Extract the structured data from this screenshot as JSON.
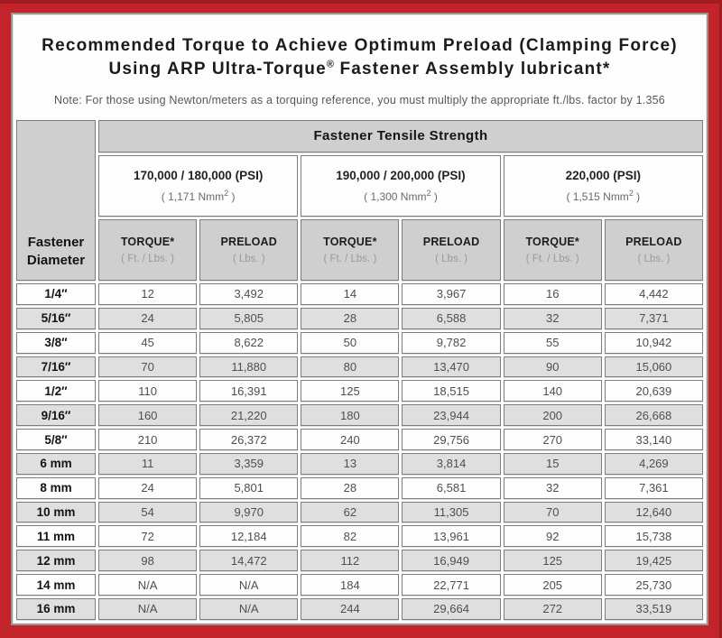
{
  "title": {
    "line1": "Recommended Torque to Achieve Optimum Preload (Clamping Force)",
    "line2_pre": "Using ARP Ultra-Torque",
    "line2_sup": "®",
    "line2_post": " Fastener Assembly lubricant*"
  },
  "note": "Note: For those using Newton/meters as a torquing reference, you must multiply the appropriate ft./lbs. factor by 1.356",
  "table": {
    "tensile_header": "Fastener Tensile Strength",
    "diameter_header": [
      "Fastener",
      "Diameter"
    ],
    "groups": [
      {
        "psi_label": "170,000 / 180,000 (PSI)",
        "nmm_pre": "( 1,171 Nmm",
        "nmm_sup": "2",
        "nmm_post": " )"
      },
      {
        "psi_label": "190,000 / 200,000 (PSI)",
        "nmm_pre": "( 1,300 Nmm",
        "nmm_sup": "2",
        "nmm_post": " )"
      },
      {
        "psi_label": "220,000 (PSI)",
        "nmm_pre": "( 1,515 Nmm",
        "nmm_sup": "2",
        "nmm_post": " )"
      }
    ],
    "col_headers": {
      "torque_label": "TORQUE*",
      "torque_unit": "( Ft. / Lbs. )",
      "preload_label": "PRELOAD",
      "preload_unit": "( Lbs. )"
    },
    "rows": [
      {
        "diameter": "1/4″",
        "values": [
          "12",
          "3,492",
          "14",
          "3,967",
          "16",
          "4,442"
        ]
      },
      {
        "diameter": "5/16″",
        "values": [
          "24",
          "5,805",
          "28",
          "6,588",
          "32",
          "7,371"
        ]
      },
      {
        "diameter": "3/8″",
        "values": [
          "45",
          "8,622",
          "50",
          "9,782",
          "55",
          "10,942"
        ]
      },
      {
        "diameter": "7/16″",
        "values": [
          "70",
          "11,880",
          "80",
          "13,470",
          "90",
          "15,060"
        ]
      },
      {
        "diameter": "1/2″",
        "values": [
          "110",
          "16,391",
          "125",
          "18,515",
          "140",
          "20,639"
        ]
      },
      {
        "diameter": "9/16″",
        "values": [
          "160",
          "21,220",
          "180",
          "23,944",
          "200",
          "26,668"
        ]
      },
      {
        "diameter": "5/8″",
        "values": [
          "210",
          "26,372",
          "240",
          "29,756",
          "270",
          "33,140"
        ]
      },
      {
        "diameter": "6 mm",
        "values": [
          "11",
          "3,359",
          "13",
          "3,814",
          "15",
          "4,269"
        ]
      },
      {
        "diameter": "8 mm",
        "values": [
          "24",
          "5,801",
          "28",
          "6,581",
          "32",
          "7,361"
        ]
      },
      {
        "diameter": "10 mm",
        "values": [
          "54",
          "9,970",
          "62",
          "11,305",
          "70",
          "12,640"
        ]
      },
      {
        "diameter": "11 mm",
        "values": [
          "72",
          "12,184",
          "82",
          "13,961",
          "92",
          "15,738"
        ]
      },
      {
        "diameter": "12 mm",
        "values": [
          "98",
          "14,472",
          "112",
          "16,949",
          "125",
          "19,425"
        ]
      },
      {
        "diameter": "14 mm",
        "values": [
          "N/A",
          "N/A",
          "184",
          "22,771",
          "205",
          "25,730"
        ]
      },
      {
        "diameter": "16 mm",
        "values": [
          "N/A",
          "N/A",
          "244",
          "29,664",
          "272",
          "33,519"
        ]
      }
    ]
  },
  "colors": {
    "frame_red": "#c3232b",
    "frame_red_dark": "#a01b22",
    "header_gray": "#cfcfcf",
    "row_gray": "#dfdfdf",
    "row_white": "#fdfdfd",
    "cell_border": "#7d7d7d"
  }
}
